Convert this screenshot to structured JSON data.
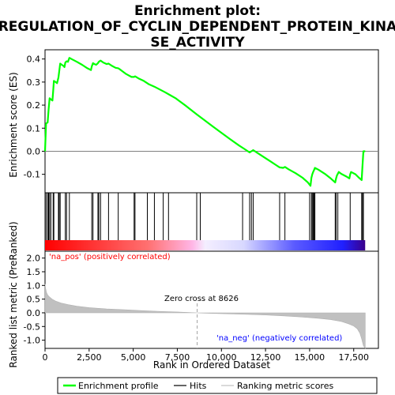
{
  "chart_data": {
    "type": "line",
    "title_lines": [
      "Enrichment plot:",
      "REGULATION_OF_CYCLIN_DEPENDENT_PROTEIN_KINA",
      "SE_ACTIVITY"
    ],
    "es_panel": {
      "ylabel": "Enrichment score (ES)",
      "ylim": [
        -0.18,
        0.44
      ],
      "yticks": [
        "0.4",
        "0.3",
        "0.2",
        "0.1",
        "0.0",
        "-0.1"
      ],
      "ytick_values": [
        0.4,
        0.3,
        0.2,
        0.1,
        0.0,
        -0.1
      ],
      "series": [
        {
          "name": "Enrichment profile",
          "color": "#00ff00",
          "points": [
            [
              0,
              0
            ],
            [
              60,
              0.12
            ],
            [
              150,
              0.125
            ],
            [
              200,
              0.18
            ],
            [
              260,
              0.23
            ],
            [
              330,
              0.225
            ],
            [
              420,
              0.22
            ],
            [
              460,
              0.26
            ],
            [
              500,
              0.305
            ],
            [
              600,
              0.3
            ],
            [
              680,
              0.295
            ],
            [
              760,
              0.32
            ],
            [
              800,
              0.345
            ],
            [
              860,
              0.38
            ],
            [
              950,
              0.375
            ],
            [
              1050,
              0.37
            ],
            [
              1100,
              0.365
            ],
            [
              1150,
              0.385
            ],
            [
              1220,
              0.39
            ],
            [
              1300,
              0.388
            ],
            [
              1380,
              0.405
            ],
            [
              1500,
              0.4
            ],
            [
              1800,
              0.388
            ],
            [
              2100,
              0.375
            ],
            [
              2400,
              0.36
            ],
            [
              2600,
              0.352
            ],
            [
              2650,
              0.368
            ],
            [
              2720,
              0.382
            ],
            [
              2800,
              0.378
            ],
            [
              2900,
              0.375
            ],
            [
              3000,
              0.382
            ],
            [
              3050,
              0.388
            ],
            [
              3150,
              0.393
            ],
            [
              3300,
              0.385
            ],
            [
              3500,
              0.378
            ],
            [
              3600,
              0.38
            ],
            [
              3800,
              0.37
            ],
            [
              4000,
              0.362
            ],
            [
              4150,
              0.36
            ],
            [
              4300,
              0.352
            ],
            [
              4600,
              0.335
            ],
            [
              4900,
              0.322
            ],
            [
              5050,
              0.322
            ],
            [
              5100,
              0.325
            ],
            [
              5300,
              0.316
            ],
            [
              5600,
              0.305
            ],
            [
              5900,
              0.29
            ],
            [
              6200,
              0.28
            ],
            [
              6500,
              0.268
            ],
            [
              6800,
              0.256
            ],
            [
              7100,
              0.243
            ],
            [
              7400,
              0.23
            ],
            [
              7700,
              0.213
            ],
            [
              8000,
              0.196
            ],
            [
              8300,
              0.178
            ],
            [
              8600,
              0.16
            ],
            [
              9000,
              0.137
            ],
            [
              9500,
              0.108
            ],
            [
              10000,
              0.08
            ],
            [
              10500,
              0.052
            ],
            [
              11000,
              0.025
            ],
            [
              11300,
              0.01
            ],
            [
              11500,
              0.0
            ],
            [
              11600,
              -0.005
            ],
            [
              11700,
              0.0
            ],
            [
              11800,
              0.005
            ],
            [
              12000,
              -0.005
            ],
            [
              12400,
              -0.025
            ],
            [
              12800,
              -0.045
            ],
            [
              13100,
              -0.06
            ],
            [
              13300,
              -0.07
            ],
            [
              13500,
              -0.072
            ],
            [
              13600,
              -0.068
            ],
            [
              13800,
              -0.078
            ],
            [
              14200,
              -0.095
            ],
            [
              14600,
              -0.115
            ],
            [
              14900,
              -0.135
            ],
            [
              15050,
              -0.15
            ],
            [
              15100,
              -0.115
            ],
            [
              15150,
              -0.1
            ],
            [
              15200,
              -0.09
            ],
            [
              15250,
              -0.082
            ],
            [
              15300,
              -0.072
            ],
            [
              15500,
              -0.08
            ],
            [
              15900,
              -0.1
            ],
            [
              16200,
              -0.118
            ],
            [
              16450,
              -0.135
            ],
            [
              16500,
              -0.118
            ],
            [
              16550,
              -0.105
            ],
            [
              16650,
              -0.09
            ],
            [
              16800,
              -0.098
            ],
            [
              17100,
              -0.11
            ],
            [
              17250,
              -0.118
            ],
            [
              17300,
              -0.1
            ],
            [
              17350,
              -0.09
            ],
            [
              17600,
              -0.1
            ],
            [
              17800,
              -0.115
            ],
            [
              17950,
              -0.125
            ],
            [
              18000,
              -0.06
            ],
            [
              18050,
              0.0
            ],
            [
              18150,
              0.0
            ]
          ]
        }
      ]
    },
    "hits_panel": {
      "series_name": "Hits",
      "positions": [
        60,
        150,
        200,
        260,
        330,
        460,
        500,
        760,
        800,
        860,
        1150,
        1220,
        1380,
        2650,
        2720,
        3000,
        3050,
        3150,
        3600,
        4150,
        5050,
        5100,
        5800,
        6200,
        6700,
        7000,
        8600,
        8800,
        11200,
        11600,
        11700,
        11800,
        13300,
        13600,
        15000,
        15100,
        15150,
        15200,
        15250,
        15300,
        16450,
        16500,
        16600,
        17300,
        17950,
        18000,
        18050
      ]
    },
    "ranked_panel": {
      "ylabel": "Ranked list metric (PreRanked)",
      "xlabel": "Rank in Ordered Dataset",
      "ylim": [
        -1.3,
        2.25
      ],
      "yticks": [
        "2.0",
        "1.5",
        "1.0",
        "0.5",
        "0.0",
        "-0.5",
        "-1.0"
      ],
      "ytick_values": [
        2.0,
        1.5,
        1.0,
        0.5,
        0.0,
        -0.5,
        -1.0
      ],
      "xticks": [
        "0",
        "2,500",
        "5,000",
        "7,500",
        "10,000",
        "12,500",
        "15,000",
        "17,500"
      ],
      "xtick_values": [
        0,
        2500,
        5000,
        7500,
        10000,
        12500,
        15000,
        17500
      ],
      "xlim": [
        0,
        18900
      ],
      "series_name": "Ranking metric scores",
      "series_color": "#c0c0c0",
      "metric_curve": [
        [
          0,
          1.05
        ],
        [
          30,
          0.9
        ],
        [
          80,
          0.75
        ],
        [
          150,
          0.65
        ],
        [
          250,
          0.58
        ],
        [
          400,
          0.5
        ],
        [
          600,
          0.43
        ],
        [
          900,
          0.36
        ],
        [
          1300,
          0.3
        ],
        [
          1800,
          0.24
        ],
        [
          2500,
          0.19
        ],
        [
          3500,
          0.14
        ],
        [
          4500,
          0.11
        ],
        [
          5500,
          0.08
        ],
        [
          6500,
          0.05
        ],
        [
          7500,
          0.03
        ],
        [
          8626,
          0.0
        ],
        [
          9500,
          -0.02
        ],
        [
          10500,
          -0.04
        ],
        [
          11500,
          -0.06
        ],
        [
          12500,
          -0.08
        ],
        [
          13500,
          -0.11
        ],
        [
          14500,
          -0.15
        ],
        [
          15500,
          -0.2
        ],
        [
          16200,
          -0.25
        ],
        [
          16800,
          -0.32
        ],
        [
          17200,
          -0.4
        ],
        [
          17500,
          -0.48
        ],
        [
          17700,
          -0.58
        ],
        [
          17850,
          -0.75
        ],
        [
          17950,
          -0.95
        ],
        [
          18050,
          -1.2
        ],
        [
          18150,
          -1.3
        ]
      ],
      "zero_cross_label": "Zero cross at 8626",
      "zero_cross": 8626,
      "pos_label": "'na_pos' (positively correlated)",
      "neg_label": "'na_neg' (negatively correlated)",
      "pos_label_color": "#ff0000",
      "neg_label_color": "#0000ff"
    },
    "legend": {
      "items": [
        {
          "label": "Enrichment profile",
          "color": "#00ff00"
        },
        {
          "label": "Hits",
          "color": "#000000"
        },
        {
          "label": "Ranking metric scores",
          "color": "#c0c0c0"
        }
      ]
    },
    "colorbar": {
      "gradient": [
        "#ff0000",
        "#ff6e6e",
        "#ffb6e6",
        "#eeeeff",
        "#7070ff",
        "#0000ff",
        "#4b0082"
      ]
    }
  }
}
